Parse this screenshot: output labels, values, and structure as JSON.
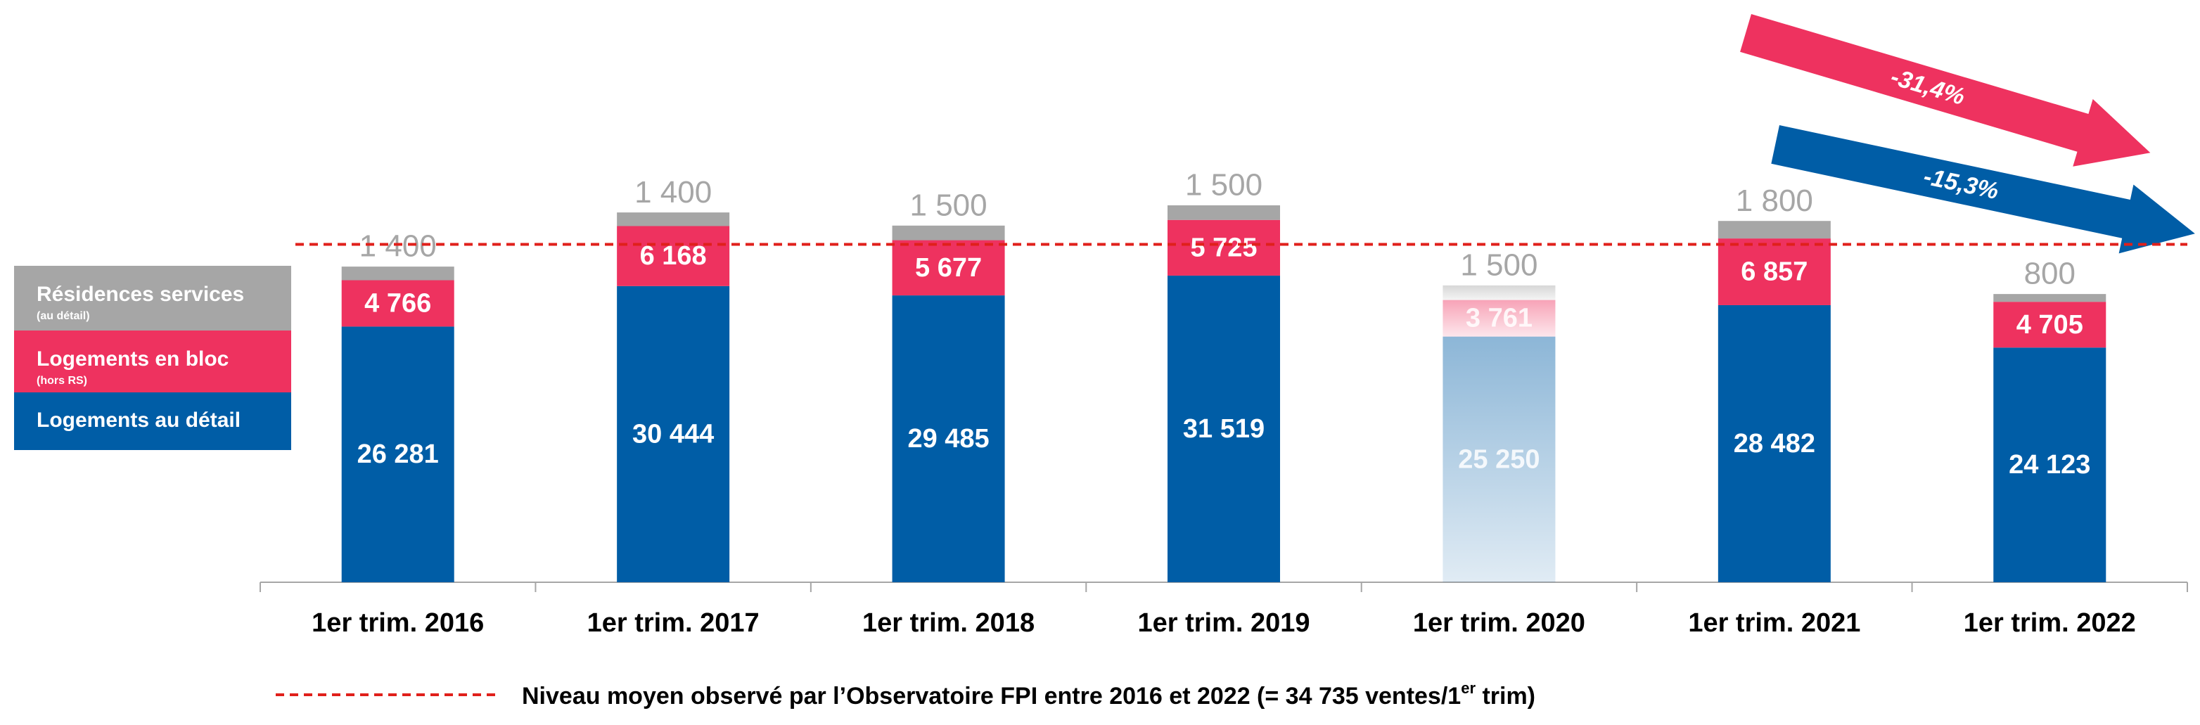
{
  "chart_data": {
    "type": "stacked_bar",
    "categories": [
      "1er trim. 2016",
      "1er trim. 2017",
      "1er trim. 2018",
      "1er trim. 2019",
      "1er trim. 2020",
      "1er trim. 2021",
      "1er trim. 2022"
    ],
    "series": [
      {
        "name": "Logements au détail",
        "color": "#005da6",
        "values": [
          26281,
          30444,
          29485,
          31519,
          25250,
          28482,
          24123
        ],
        "value_labels": [
          "26 281",
          "30 444",
          "29 485",
          "31 519",
          "25 250",
          "28 482",
          "24 123"
        ]
      },
      {
        "name": "Logements en bloc",
        "sublabel": "(hors RS)",
        "color": "#ee325f",
        "values": [
          4766,
          6168,
          5677,
          5725,
          3761,
          6857,
          4705
        ],
        "value_labels": [
          "4 766",
          "6 168",
          "5 677",
          "5 725",
          "3 761",
          "6 857",
          "4 705"
        ]
      },
      {
        "name": "Résidences services",
        "sublabel": "(au détail)",
        "color": "#a6a6a6",
        "values": [
          1400,
          1400,
          1500,
          1500,
          1500,
          1800,
          800
        ],
        "value_labels": [
          "1 400",
          "1 400",
          "1 500",
          "1 500",
          "1 500",
          "1 800",
          "800"
        ]
      }
    ],
    "faded_category": "1er trim. 2020",
    "reference_line": {
      "value": 34735,
      "color": "#e0201b",
      "label": [
        "Niveau moyen observé par l’Observatoire FPI entre 2016 et 2022 (= 34 735 ventes/1",
        "er",
        " trim)"
      ]
    },
    "annotations": [
      {
        "text": "-31,4%",
        "color": "#ee325f"
      },
      {
        "text": "-15,3%",
        "color": "#005da6"
      }
    ]
  }
}
